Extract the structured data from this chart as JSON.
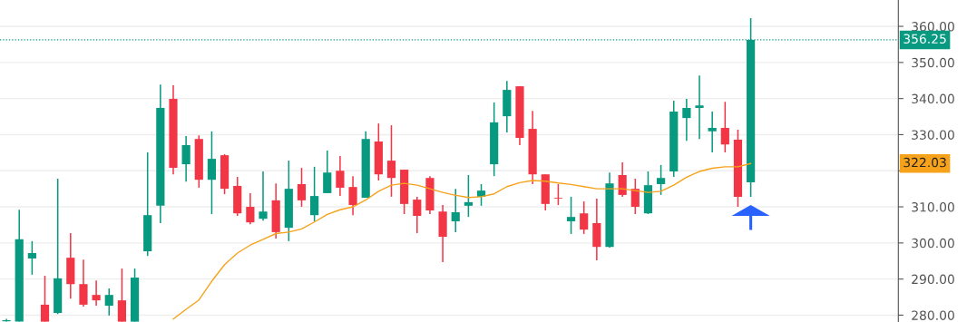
{
  "chart_data": {
    "type": "candlestick",
    "categories": [
      null,
      null,
      null,
      null,
      null,
      null,
      null,
      null,
      null,
      null,
      null,
      null,
      null,
      null,
      null,
      null,
      null,
      null,
      null,
      null,
      null,
      null,
      null,
      null,
      null,
      null,
      null,
      null,
      null,
      null,
      null,
      null,
      null,
      null,
      null,
      null,
      null,
      null,
      null,
      null,
      null,
      null,
      null,
      null,
      null,
      null,
      null,
      null,
      null,
      null,
      null,
      null,
      null,
      null,
      null,
      null,
      null,
      null,
      null
    ],
    "ohlc": [
      [
        278.3,
        279.0,
        278.2,
        278.6
      ],
      [
        278.2,
        309.2,
        278.2,
        301.0
      ],
      [
        295.7,
        300.5,
        291.2,
        297.2
      ],
      [
        282.9,
        290.9,
        278.2,
        278.2
      ],
      [
        280.6,
        317.8,
        280.3,
        290.2
      ],
      [
        295.9,
        302.7,
        284.6,
        288.6
      ],
      [
        288.6,
        295.4,
        282.4,
        282.9
      ],
      [
        285.6,
        289.6,
        282.6,
        284.1
      ],
      [
        282.6,
        287.4,
        279.9,
        285.6
      ],
      [
        284.1,
        292.9,
        278.2,
        278.2
      ],
      [
        278.2,
        292.9,
        278.2,
        290.4
      ],
      [
        297.7,
        325.1,
        296.4,
        307.7
      ],
      [
        310.3,
        343.9,
        305.5,
        337.4
      ],
      [
        339.9,
        343.7,
        319.0,
        320.8
      ],
      [
        321.8,
        329.6,
        317.0,
        327.1
      ],
      [
        328.8,
        329.8,
        315.3,
        317.5
      ],
      [
        317.5,
        330.9,
        308.0,
        323.3
      ],
      [
        324.3,
        324.6,
        313.5,
        315.0
      ],
      [
        315.8,
        318.3,
        307.5,
        308.2
      ],
      [
        310.0,
        313.8,
        305.2,
        305.7
      ],
      [
        306.7,
        319.8,
        306.2,
        308.7
      ],
      [
        311.8,
        316.5,
        301.2,
        303.0
      ],
      [
        304.2,
        322.8,
        300.5,
        315.0
      ],
      [
        316.3,
        320.8,
        310.0,
        311.8
      ],
      [
        307.7,
        321.1,
        306.0,
        313.0
      ],
      [
        313.8,
        325.6,
        313.8,
        319.5
      ],
      [
        320.0,
        324.1,
        313.0,
        315.3
      ],
      [
        315.5,
        318.5,
        307.7,
        310.5
      ],
      [
        312.5,
        330.9,
        312.5,
        328.8
      ],
      [
        328.1,
        333.1,
        317.3,
        319.0
      ],
      [
        322.8,
        332.6,
        312.8,
        318.0
      ],
      [
        320.3,
        320.3,
        308.0,
        310.8
      ],
      [
        312.0,
        312.8,
        302.7,
        307.5
      ],
      [
        318.0,
        318.5,
        308.0,
        309.0
      ],
      [
        308.7,
        310.5,
        294.7,
        301.7
      ],
      [
        306.0,
        315.0,
        303.0,
        308.5
      ],
      [
        310.3,
        318.8,
        307.2,
        311.3
      ],
      [
        312.8,
        316.3,
        310.3,
        314.5
      ],
      [
        321.8,
        338.9,
        318.5,
        333.4
      ],
      [
        335.1,
        344.9,
        330.6,
        342.4
      ],
      [
        343.4,
        343.4,
        327.1,
        329.1
      ],
      [
        331.6,
        336.6,
        316.3,
        319.0
      ],
      [
        319.0,
        319.0,
        309.0,
        310.8
      ],
      [
        312.5,
        316.3,
        310.5,
        312.3
      ],
      [
        306.0,
        312.8,
        302.5,
        307.2
      ],
      [
        308.2,
        311.5,
        302.5,
        303.7
      ],
      [
        305.5,
        312.3,
        295.2,
        298.9
      ],
      [
        298.9,
        319.5,
        298.7,
        316.5
      ],
      [
        318.8,
        322.3,
        312.8,
        313.3
      ],
      [
        315.0,
        317.8,
        308.0,
        310.0
      ],
      [
        308.2,
        319.8,
        308.0,
        316.0
      ],
      [
        316.3,
        321.6,
        313.3,
        318.0
      ],
      [
        319.8,
        339.4,
        318.3,
        336.4
      ],
      [
        334.6,
        339.9,
        328.3,
        337.4
      ],
      [
        337.4,
        346.4,
        328.8,
        338.1
      ],
      [
        330.9,
        336.4,
        325.1,
        331.9
      ],
      [
        331.9,
        339.1,
        325.1,
        327.3
      ],
      [
        328.6,
        331.4,
        310.0,
        312.8
      ],
      [
        316.8,
        362.3,
        312.8,
        356.25
      ]
    ],
    "colors": [
      "#089981",
      "#089981",
      "#089981",
      "#f23645",
      "#089981",
      "#f23645",
      "#f23645",
      "#f23645",
      "#089981",
      "#f23645",
      "#089981",
      "#089981",
      "#089981",
      "#f23645",
      "#089981",
      "#f23645",
      "#089981",
      "#f23645",
      "#f23645",
      "#f23645",
      "#089981",
      "#f23645",
      "#089981",
      "#f23645",
      "#089981",
      "#089981",
      "#f23645",
      "#f23645",
      "#089981",
      "#f23645",
      "#f23645",
      "#f23645",
      "#f23645",
      "#f23645",
      "#f23645",
      "#089981",
      "#089981",
      "#089981",
      "#089981",
      "#089981",
      "#f23645",
      "#f23645",
      "#f23645",
      "#f23645",
      "#089981",
      "#f23645",
      "#f23645",
      "#089981",
      "#f23645",
      "#f23645",
      "#089981",
      "#089981",
      "#089981",
      "#089981",
      "#089981",
      "#089981",
      "#f23645",
      "#f23645",
      "#089981"
    ],
    "series": [
      {
        "type": "line",
        "color": "#f7a21b",
        "values": [
          null,
          null,
          null,
          null,
          null,
          null,
          null,
          null,
          null,
          null,
          null,
          null,
          null,
          278.9,
          281.6,
          284.2,
          289.4,
          294.0,
          297.2,
          299.4,
          301.0,
          302.6,
          303.0,
          303.9,
          305.8,
          307.9,
          309.2,
          310.0,
          311.9,
          314.3,
          316.0,
          316.5,
          316.0,
          315.0,
          314.0,
          313.2,
          312.6,
          312.8,
          313.6,
          315.6,
          316.7,
          317.3,
          317.1,
          316.6,
          316.2,
          315.6,
          315.0,
          315.0,
          315.0,
          314.5,
          314.0,
          314.3,
          316.0,
          318.2,
          319.8,
          320.7,
          321.1,
          321.1,
          322.0
        ]
      }
    ],
    "ylim": [
      278.1,
      367.3
    ],
    "yticks": [
      {
        "value": 280,
        "label": "280.00"
      },
      {
        "value": 290,
        "label": "290.00"
      },
      {
        "value": 300,
        "label": "300.00"
      },
      {
        "value": 310,
        "label": "310.00"
      },
      {
        "value": 320,
        "label": null
      },
      {
        "value": 330,
        "label": "330.00"
      },
      {
        "value": 340,
        "label": "340.00"
      },
      {
        "value": 350,
        "label": "350.00"
      },
      {
        "value": 360,
        "label": "360.00"
      }
    ],
    "ref_lines": [
      {
        "axis": "y",
        "value": 356.25,
        "label": "356.25",
        "color": "#089981",
        "line_style": "dotted"
      }
    ],
    "annotations": [
      "322.03"
    ],
    "grid": "y",
    "tick_labels": "y"
  }
}
